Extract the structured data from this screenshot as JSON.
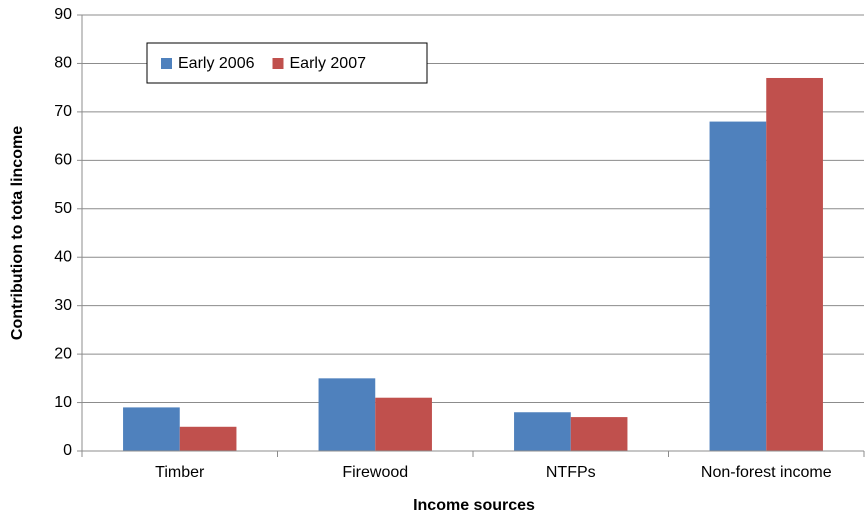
{
  "chart_data": {
    "type": "bar",
    "x_label": "Income sources",
    "y_label": "Contribution to tota lincome",
    "categories": [
      "Timber",
      "Firewood",
      "NTFPs",
      "Non-forest income"
    ],
    "series": [
      {
        "name": "Early 2006",
        "color": "#4f81bd",
        "values": [
          9,
          15,
          8,
          68
        ]
      },
      {
        "name": "Early 2007",
        "color": "#c0504d",
        "values": [
          5,
          11,
          7,
          77
        ]
      }
    ],
    "ylim": [
      0,
      90
    ],
    "yticks": [
      0,
      10,
      20,
      30,
      40,
      50,
      60,
      70,
      80,
      90
    ],
    "grid": true,
    "legend": "upper left"
  }
}
